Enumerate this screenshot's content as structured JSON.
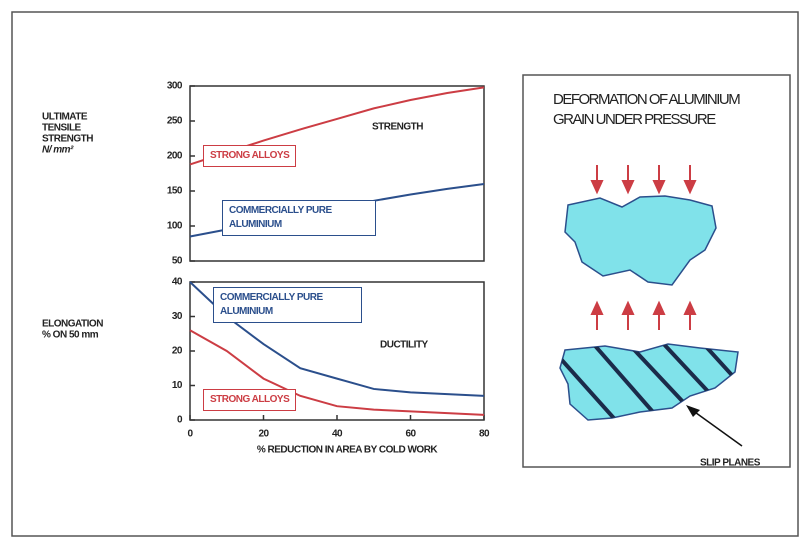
{
  "chart_data": [
    {
      "type": "line",
      "ylabel": [
        "ULTIMATE",
        "TENSILE",
        "STRENGTH",
        "N/ mm²"
      ],
      "annotation": "STRENGTH",
      "x": [
        0,
        10,
        20,
        30,
        40,
        50,
        60,
        70,
        80
      ],
      "xlim": [
        0,
        80
      ],
      "ylim": [
        50,
        300
      ],
      "yticks": [
        50,
        100,
        150,
        200,
        250,
        300
      ],
      "series": [
        {
          "name": "STRONG ALLOYS",
          "color": "#cc3d44",
          "values": [
            188,
            205,
            222,
            238,
            253,
            268,
            280,
            290,
            298
          ]
        },
        {
          "name": "COMMERCIALLY PURE ALUMINIUM",
          "color": "#2b4f8c",
          "values": [
            85,
            95,
            105,
            115,
            125,
            136,
            145,
            153,
            160
          ]
        }
      ]
    },
    {
      "type": "line",
      "ylabel": [
        "ELONGATION",
        "% ON 50 mm"
      ],
      "annotation": "DUCTILITY",
      "xlabel": "% REDUCTION IN AREA BY COLD WORK",
      "x": [
        0,
        10,
        20,
        30,
        40,
        50,
        60,
        70,
        80
      ],
      "xlim": [
        0,
        80
      ],
      "xticks": [
        0,
        20,
        40,
        60,
        80
      ],
      "ylim": [
        0,
        40
      ],
      "yticks": [
        0,
        10,
        20,
        30,
        40
      ],
      "series": [
        {
          "name": "COMMERCIALLY PURE ALUMINIUM",
          "color": "#2b4f8c",
          "values": [
            40,
            30,
            22,
            15,
            12,
            9,
            8,
            7.5,
            7
          ]
        },
        {
          "name": "STRONG ALLOYS",
          "color": "#cc3d44",
          "values": [
            26,
            20,
            12,
            7,
            4,
            3,
            2.5,
            2,
            1.5
          ]
        }
      ]
    }
  ],
  "diagram": {
    "title": "DEFORMATION OF ALUMINIUM GRAIN UNDER PRESSURE",
    "label": "SLIP PLANES"
  }
}
